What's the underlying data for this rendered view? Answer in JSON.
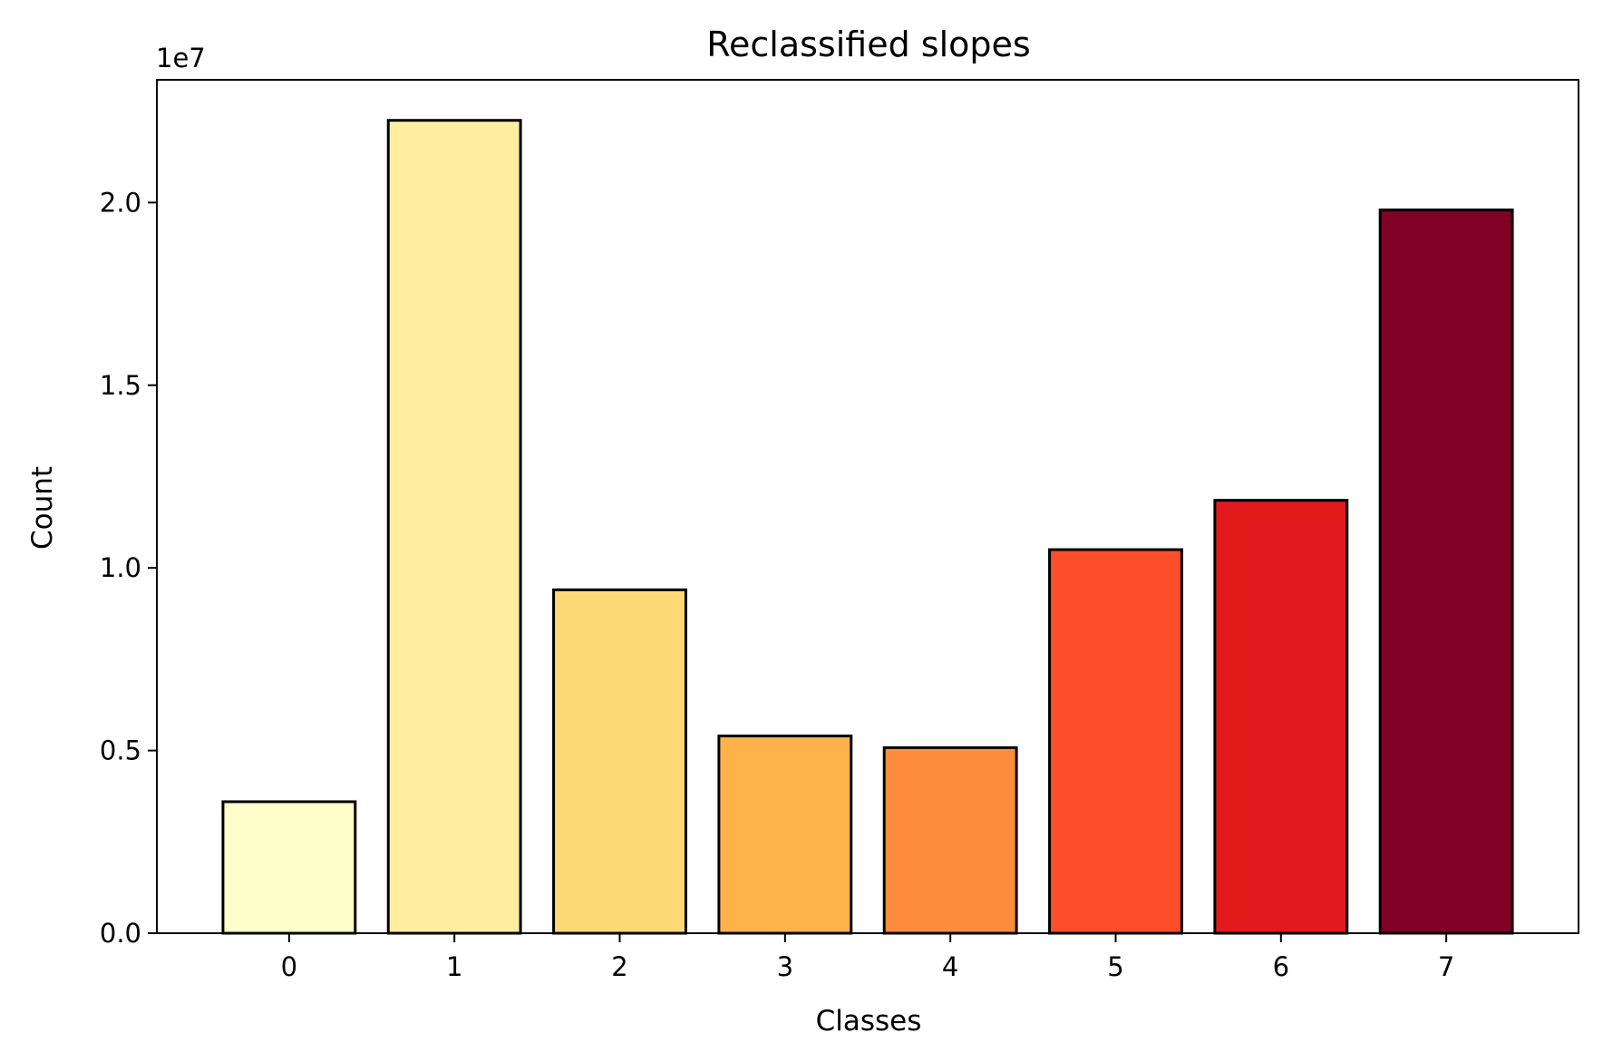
{
  "chart_data": {
    "type": "bar",
    "title": "Reclassified slopes",
    "xlabel": "Classes",
    "ylabel": "Count",
    "y_offset_label": "1e7",
    "categories": [
      "0",
      "1",
      "2",
      "3",
      "4",
      "5",
      "6",
      "7"
    ],
    "values": [
      3600000,
      22250000,
      9400000,
      5400000,
      5080000,
      10500000,
      11850000,
      19800000
    ],
    "colors": [
      "#ffffcc",
      "#ffeda0",
      "#fed976",
      "#feb24c",
      "#fd8d3c",
      "#fc4e2a",
      "#e31a1c",
      "#800026"
    ],
    "yticks": [
      0,
      5000000,
      10000000,
      15000000,
      20000000
    ],
    "ytick_labels": [
      "0.0",
      "0.5",
      "1.0",
      "1.5",
      "2.0"
    ],
    "ylim": [
      0,
      23360000
    ],
    "grid": false,
    "legend": "none"
  }
}
